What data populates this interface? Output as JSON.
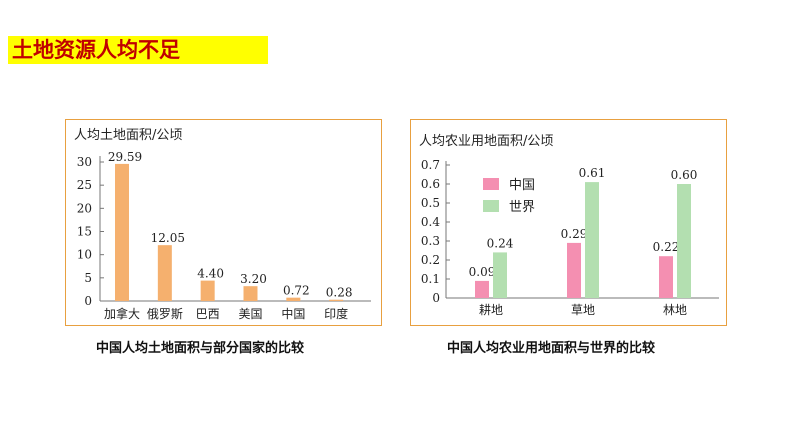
{
  "heading": "土地资源人均不足",
  "captions": {
    "left": "中国人均土地面积与部分国家的比较",
    "right": "中国人均农业用地面积与世界的比较"
  },
  "chart_data": [
    {
      "type": "bar",
      "ylabel": "人均土地面积/公顷",
      "categories": [
        "加拿大",
        "俄罗斯",
        "巴西",
        "美国",
        "中国",
        "印度"
      ],
      "values": [
        29.59,
        12.05,
        4.4,
        3.2,
        0.72,
        0.28
      ],
      "value_labels": [
        "29.59",
        "12.05",
        "4.40",
        "3.20",
        "0.72",
        "0.28"
      ],
      "yticks": [
        "0",
        "5",
        "10",
        "15",
        "20",
        "25",
        "30"
      ],
      "ylim": [
        0,
        30
      ],
      "grid": false,
      "colors": {
        "bar": "#f5b06e"
      }
    },
    {
      "type": "bar",
      "ylabel": "人均农业用地面积/公顷",
      "categories": [
        "耕地",
        "草地",
        "林地"
      ],
      "series": [
        {
          "name": "中国",
          "values": [
            0.09,
            0.29,
            0.22
          ],
          "value_labels": [
            "0.09",
            "0.29",
            "0.22"
          ],
          "color": "#f48fb1"
        },
        {
          "name": "世界",
          "values": [
            0.24,
            0.61,
            0.6
          ],
          "value_labels": [
            "0.24",
            "0.61",
            "0.60"
          ],
          "color": "#b3dfb0"
        }
      ],
      "yticks": [
        "0",
        "0.1",
        "0.2",
        "0.3",
        "0.4",
        "0.5",
        "0.6",
        "0.7"
      ],
      "ylim": [
        0,
        0.7
      ],
      "legend": "top-left",
      "grid": false
    }
  ]
}
